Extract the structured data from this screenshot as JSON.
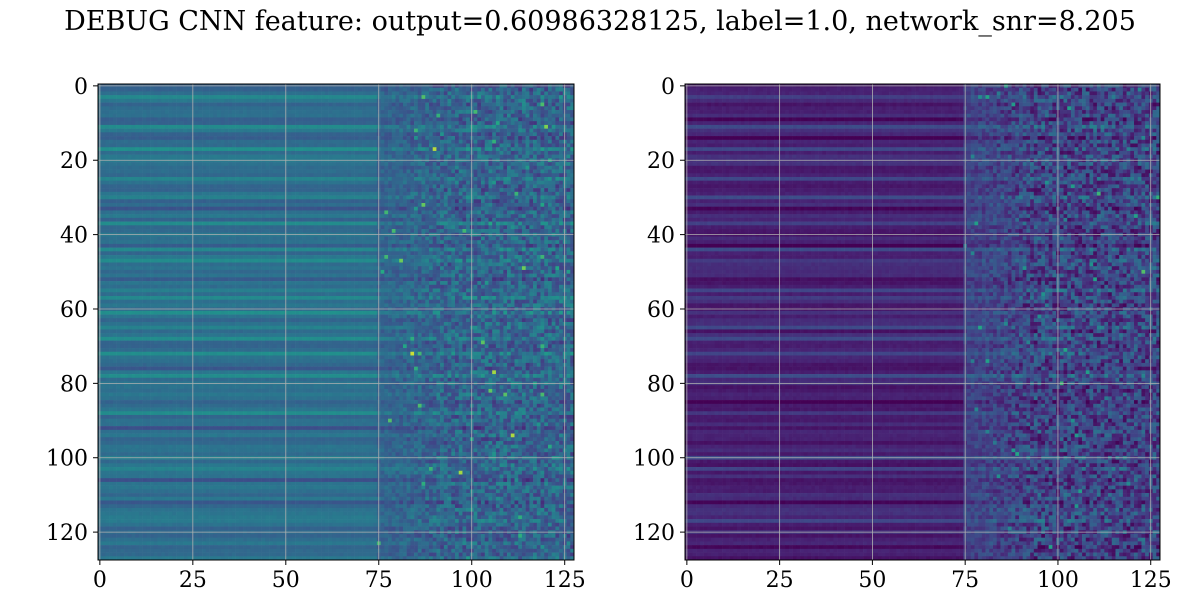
{
  "title": "DEBUG CNN feature: output=0.60986328125, label=1.0, network_snr=8.205",
  "chart_data": [
    {
      "type": "heatmap",
      "colormap": "viridis",
      "grid": true,
      "rows": 128,
      "cols": 128,
      "xlim": [
        0,
        127
      ],
      "ylim": [
        127,
        0
      ],
      "xticks": [
        0,
        25,
        50,
        75,
        100,
        125
      ],
      "yticks": [
        0,
        20,
        40,
        60,
        80,
        100,
        120
      ],
      "value_range": [
        0,
        1
      ],
      "description_of_values": {
        "left_region_cols": [
          0,
          75
        ],
        "left_region_level": 0.45,
        "right_region_cols": [
          75,
          127
        ],
        "right_region_level": 0.4,
        "right_region_noise": 0.25,
        "bright_rows": [
          3,
          11,
          17,
          25,
          30,
          37,
          44,
          47,
          55,
          57,
          61,
          65,
          68,
          72,
          78,
          88,
          100,
          103,
          117
        ],
        "dark_rows": [
          9,
          14,
          33,
          43,
          52,
          76,
          85,
          92,
          106,
          112,
          124
        ]
      }
    },
    {
      "type": "heatmap",
      "colormap": "viridis",
      "grid": true,
      "rows": 128,
      "cols": 128,
      "xlim": [
        0,
        127
      ],
      "ylim": [
        127,
        0
      ],
      "xticks": [
        0,
        25,
        50,
        75,
        100,
        125
      ],
      "yticks": [
        0,
        20,
        40,
        60,
        80,
        100,
        120
      ],
      "value_range": [
        0,
        1
      ],
      "description_of_values": {
        "left_region_cols": [
          0,
          75
        ],
        "left_region_level": 0.12,
        "right_region_cols": [
          75,
          127
        ],
        "right_region_level": 0.25,
        "right_region_noise": 0.3,
        "bright_rows": [
          3,
          11,
          17,
          25,
          30,
          37,
          44,
          47,
          55,
          57,
          61,
          65,
          68,
          72,
          78,
          88,
          100,
          103,
          117
        ],
        "dark_rows": [
          9,
          14,
          33,
          43,
          52,
          76,
          85,
          92,
          106,
          112,
          124
        ]
      }
    }
  ]
}
